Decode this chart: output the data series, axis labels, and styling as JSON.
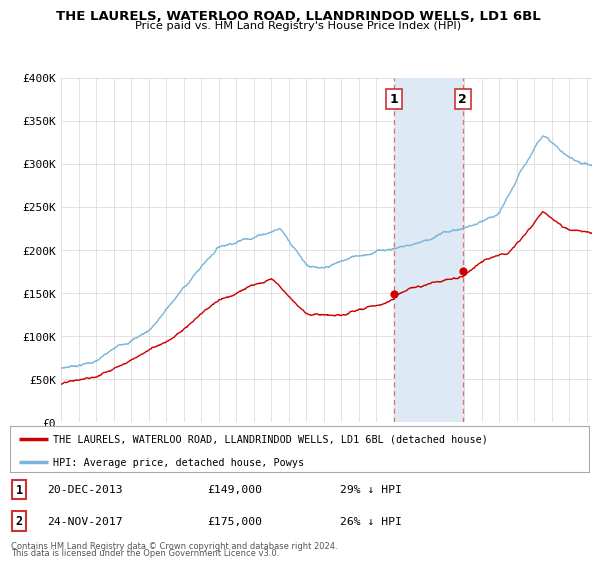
{
  "title": "THE LAURELS, WATERLOO ROAD, LLANDRINDOD WELLS, LD1 6BL",
  "subtitle": "Price paid vs. HM Land Registry's House Price Index (HPI)",
  "legend_label_red": "THE LAURELS, WATERLOO ROAD, LLANDRINDOD WELLS, LD1 6BL (detached house)",
  "legend_label_blue": "HPI: Average price, detached house, Powys",
  "footnote1": "Contains HM Land Registry data © Crown copyright and database right 2024.",
  "footnote2": "This data is licensed under the Open Government Licence v3.0.",
  "marker1_label": "1",
  "marker2_label": "2",
  "marker1_date": "20-DEC-2013",
  "marker1_price": "£149,000",
  "marker1_hpi": "29% ↓ HPI",
  "marker2_date": "24-NOV-2017",
  "marker2_price": "£175,000",
  "marker2_hpi": "26% ↓ HPI",
  "marker1_x": 2014.0,
  "marker2_x": 2017.92,
  "marker1_y": 149000,
  "marker2_y": 175000,
  "ylim": [
    0,
    400000
  ],
  "xlim_left": 1995.0,
  "xlim_right": 2025.3,
  "yticks": [
    0,
    50000,
    100000,
    150000,
    200000,
    250000,
    300000,
    350000,
    400000
  ],
  "ytick_labels": [
    "£0",
    "£50K",
    "£100K",
    "£150K",
    "£200K",
    "£250K",
    "£300K",
    "£350K",
    "£400K"
  ],
  "xtick_start": 1995,
  "xtick_end": 2025,
  "blue_color": "#7ab4d8",
  "red_color": "#cc0000",
  "shade_color": "#ddeaf5",
  "vline_color": "#e06060",
  "grid_color": "#dddddd",
  "bg_color": "#ffffff",
  "marker_box_color": "#cc3333"
}
